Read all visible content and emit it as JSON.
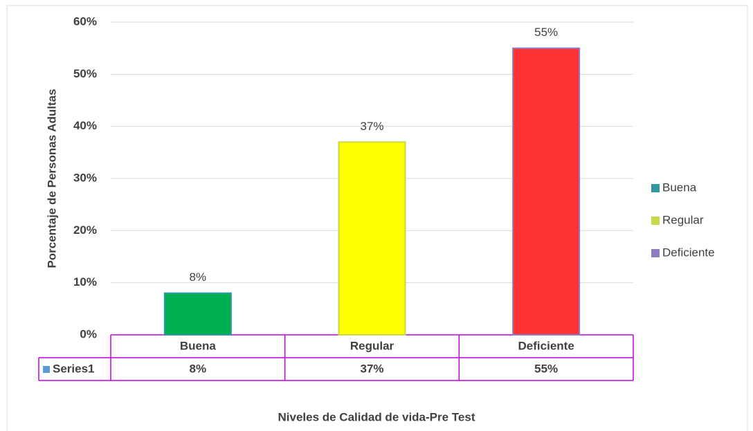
{
  "chart_data": {
    "type": "bar",
    "categories": [
      "Buena",
      "Regular",
      "Deficiente"
    ],
    "values": [
      8,
      37,
      55
    ],
    "value_labels": [
      "8%",
      "37%",
      "55%"
    ],
    "colors": [
      "#00b050",
      "#ffff00",
      "#ff3333"
    ],
    "legend_colors": [
      "#2e9aa0",
      "#c9d84a",
      "#8e7cc3"
    ],
    "series_name": "Series1",
    "series_color": "#5b9bd5",
    "ylim": [
      0,
      60
    ],
    "yticks": [
      {
        "value": 0,
        "label": "0%"
      },
      {
        "value": 10,
        "label": "10%"
      },
      {
        "value": 20,
        "label": "20%"
      },
      {
        "value": 30,
        "label": "30%"
      },
      {
        "value": 40,
        "label": "40%"
      },
      {
        "value": 50,
        "label": "50%"
      },
      {
        "value": 60,
        "label": "60%"
      }
    ],
    "grid": true,
    "y_axis_label": "Porcentaje de Personas Adultas",
    "x_axis_label": "Niveles de Calidad de vida-Pre Test"
  }
}
